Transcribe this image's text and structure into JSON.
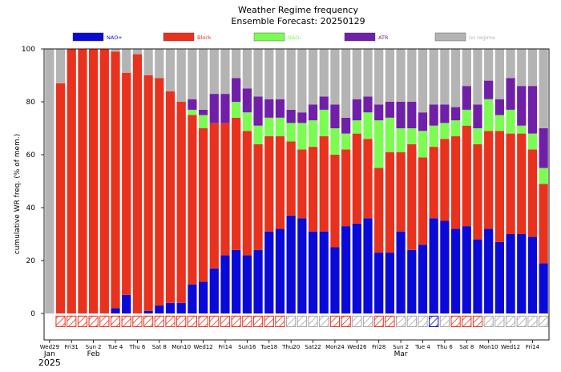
{
  "chart_data": {
    "type": "bar",
    "stacked": true,
    "title": "Weather Regime frequency",
    "subtitle": "Ensemble Forecast: 20250129",
    "ylabel": "cumulative WR freq. (% of mem.)",
    "ylim": [
      -10,
      100
    ],
    "yticks": [
      0,
      20,
      40,
      60,
      80,
      100
    ],
    "legend_position": "top",
    "colors": {
      "NAO+": "#0a0ad8",
      "Block": "#e8321e",
      "NAO-": "#7cfc52",
      "ATR": "#7020a8",
      "no regime": "#b4b4b4",
      "sunday": "#e8321e",
      "hatch_empty": "#a8a8a8"
    },
    "series": [
      {
        "name": "NAO+",
        "values": [
          0,
          0,
          0,
          0,
          0,
          0,
          2,
          7,
          0,
          1,
          3,
          4,
          4,
          11,
          12,
          17,
          22,
          24,
          22,
          24,
          31,
          32,
          37,
          36,
          31,
          31,
          25,
          33,
          34,
          36,
          23,
          23,
          31,
          24,
          26,
          36,
          35,
          32,
          33,
          28,
          32,
          27,
          30,
          30,
          29,
          19
        ]
      },
      {
        "name": "Block",
        "values": [
          0,
          87,
          100,
          100,
          100,
          100,
          97,
          84,
          98,
          89,
          86,
          80,
          76,
          64,
          58,
          55,
          50,
          50,
          47,
          40,
          36,
          35,
          28,
          26,
          32,
          36,
          35,
          29,
          34,
          30,
          32,
          38,
          30,
          40,
          33,
          27,
          31,
          35,
          38,
          36,
          37,
          42,
          38,
          38,
          33,
          30
        ]
      },
      {
        "name": "NAO-",
        "values": [
          0,
          0,
          0,
          0,
          0,
          0,
          0,
          0,
          0,
          0,
          0,
          0,
          0,
          2,
          5,
          0,
          0,
          6,
          7,
          7,
          7,
          7,
          7,
          10,
          10,
          10,
          10,
          6,
          5,
          10,
          18,
          13,
          9,
          6,
          10,
          8,
          6,
          6,
          6,
          6,
          12,
          6,
          9,
          3,
          6,
          6
        ]
      },
      {
        "name": "ATR",
        "values": [
          0,
          0,
          0,
          0,
          0,
          0,
          0,
          0,
          0,
          0,
          0,
          0,
          0,
          4,
          2,
          11,
          11,
          9,
          9,
          11,
          7,
          7,
          5,
          4,
          6,
          5,
          9,
          6,
          8,
          6,
          6,
          6,
          10,
          10,
          7,
          8,
          7,
          5,
          9,
          9,
          7,
          6,
          12,
          15,
          18,
          15
        ]
      },
      {
        "name": "no regime",
        "values": [
          100,
          13,
          0,
          0,
          0,
          0,
          1,
          9,
          2,
          10,
          11,
          16,
          20,
          19,
          23,
          17,
          17,
          11,
          15,
          18,
          19,
          19,
          23,
          24,
          21,
          18,
          21,
          26,
          19,
          18,
          21,
          20,
          20,
          20,
          24,
          21,
          21,
          22,
          14,
          21,
          12,
          19,
          11,
          14,
          14,
          30
        ]
      }
    ],
    "dominant_regime": [
      "no regime",
      "Block",
      "Block",
      "Block",
      "Block",
      "Block",
      "Block",
      "Block",
      "Block",
      "Block",
      "Block",
      "Block",
      "Block",
      "Block",
      "Block",
      "Block",
      "Block",
      "Block",
      "Block",
      "Block",
      "Block",
      "Block",
      "no regime",
      "no regime",
      "no regime",
      "no regime",
      "Block",
      "Block",
      "no regime",
      "no regime",
      "Block",
      "Block",
      "no regime",
      "no regime",
      "no regime",
      "NAO+",
      "no regime",
      "Block",
      "Block",
      "Block",
      "no regime",
      "no regime",
      "no regime",
      "no regime",
      "no regime",
      "no regime"
    ],
    "x_tick_labels": [
      {
        "index": 0,
        "label": "Wed29",
        "sub": "Jan",
        "year": "2025",
        "sunday": false
      },
      {
        "index": 2,
        "label": "Fri31",
        "sunday": false
      },
      {
        "index": 4,
        "label": "Sun 2",
        "sub": "Feb",
        "sunday": true
      },
      {
        "index": 6,
        "label": "Tue 4",
        "sunday": false
      },
      {
        "index": 8,
        "label": "Thu 6",
        "sunday": false
      },
      {
        "index": 10,
        "label": "Sat 8",
        "sunday": false
      },
      {
        "index": 12,
        "label": "Mon10",
        "sunday": false
      },
      {
        "index": 14,
        "label": "Wed12",
        "sunday": false
      },
      {
        "index": 16,
        "label": "Fri14",
        "sunday": false
      },
      {
        "index": 18,
        "label": "Sun16",
        "sunday": true
      },
      {
        "index": 20,
        "label": "Tue18",
        "sunday": false
      },
      {
        "index": 22,
        "label": "Thu20",
        "sunday": false
      },
      {
        "index": 24,
        "label": "Sat22",
        "sunday": false
      },
      {
        "index": 26,
        "label": "Mon24",
        "sunday": false
      },
      {
        "index": 28,
        "label": "Wed26",
        "sunday": false
      },
      {
        "index": 30,
        "label": "Fri28",
        "sunday": false
      },
      {
        "index": 32,
        "label": "Sun 2",
        "sub": "Mar",
        "sunday": true
      },
      {
        "index": 34,
        "label": "Tue 4",
        "sunday": false
      },
      {
        "index": 36,
        "label": "Thu 6",
        "sunday": false
      },
      {
        "index": 38,
        "label": "Sat 8",
        "sunday": false
      },
      {
        "index": 40,
        "label": "Mon10",
        "sunday": false
      },
      {
        "index": 42,
        "label": "Wed12",
        "sunday": false
      },
      {
        "index": 44,
        "label": "Fri14",
        "sunday": false
      }
    ]
  }
}
